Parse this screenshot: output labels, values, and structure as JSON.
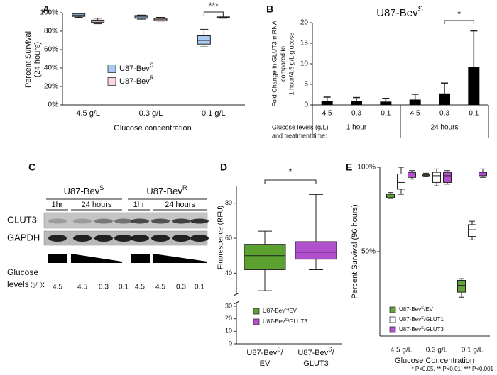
{
  "chart_data": [
    {
      "panel": "A",
      "type": "box",
      "ylabel": [
        "Percent Survival",
        "(24 hours)"
      ],
      "xlabel": "Glucose concentration",
      "categories": [
        "4.5 g/L",
        "0.3 g/L",
        "0.1 g/L"
      ],
      "series": [
        {
          "name": [
            "U87-Bev",
            "S"
          ],
          "color": "#a9cbef",
          "values": [
            {
              "min": 95,
              "q1": 96,
              "median": 97.5,
              "q3": 99,
              "max": 99.5
            },
            {
              "min": 93,
              "q1": 94,
              "median": 95.5,
              "q3": 97,
              "max": 97.5
            },
            {
              "min": 63,
              "q1": 66,
              "median": 70,
              "q3": 75,
              "max": 82
            }
          ]
        },
        {
          "name": [
            "U87-Bev",
            "R"
          ],
          "color": "#f8d7da",
          "values": [
            {
              "min": 88,
              "q1": 89.5,
              "median": 91,
              "q3": 92,
              "max": 94
            },
            {
              "min": 91,
              "q1": 91.5,
              "median": 93,
              "q3": 94,
              "max": 95
            },
            {
              "min": 94,
              "q1": 94.5,
              "median": 95,
              "q3": 95.5,
              "max": 96.5
            }
          ]
        }
      ],
      "ylim": [
        0,
        100
      ],
      "yticks": [
        {
          "value": 0,
          "label": "0%"
        },
        {
          "value": 20,
          "label": "20%"
        },
        {
          "value": 40,
          "label": "40%"
        },
        {
          "value": 60,
          "label": "60%"
        },
        {
          "value": 80,
          "label": "80%"
        },
        {
          "value": 100,
          "label": "100%"
        }
      ],
      "annotations": [
        "***"
      ]
    },
    {
      "panel": "B",
      "type": "bar",
      "title": [
        "U87-Bev",
        "S"
      ],
      "ylabel": [
        "Fold Change in GLUT3 mRNA",
        "compared to",
        "1 hour/4.5 g/L glucose"
      ],
      "categories": [
        "4.5",
        "0.3",
        "0.1",
        "4.5",
        "0.3",
        "0.1"
      ],
      "values": [
        1.0,
        0.9,
        0.8,
        1.3,
        2.8,
        9.3
      ],
      "errors": [
        0.9,
        0.9,
        0.8,
        1.3,
        2.5,
        8.7
      ],
      "color": "#000000",
      "ylim": [
        0,
        20
      ],
      "yticks": [
        0,
        5,
        10,
        15,
        20
      ],
      "group_labels": [
        "1 hour",
        "24 hours"
      ],
      "row_label": [
        "Glucose levels (g/L)",
        "and treatment time:"
      ],
      "annotations": [
        "*"
      ]
    },
    {
      "panel": "D",
      "type": "box",
      "ylabel": [
        "Fluorescence (RFU)"
      ],
      "categories": [
        [
          [
            "U87-Bev",
            "S",
            "/"
          ],
          [
            "EV"
          ]
        ],
        [
          [
            "U87-Bev",
            "S",
            "/"
          ],
          [
            "GLUT3"
          ]
        ]
      ],
      "series": [
        {
          "name": [
            "U87-Bev",
            "S",
            "/EV"
          ],
          "color": "#5ca12f",
          "values": [
            {
              "min": 30,
              "q1": 42,
              "median": 50,
              "q3": 56.5,
              "max": 64
            },
            null
          ]
        },
        {
          "name": [
            "U87-Bev",
            "S",
            "/GLUT3"
          ],
          "color": "#b050cc",
          "values": [
            null,
            {
              "min": 42,
              "q1": 48,
              "median": 52,
              "q3": 58,
              "max": 85
            }
          ]
        }
      ],
      "ylim": [
        28,
        90
      ],
      "yticks": [
        40,
        60,
        80
      ],
      "lower_ylim": [
        0,
        30
      ],
      "lower_yticks": [
        0,
        10,
        20,
        30
      ],
      "annotations": [
        "*"
      ]
    },
    {
      "panel": "E",
      "type": "box",
      "ylabel": [
        "Percent Survival (96 hours)"
      ],
      "xlabel": "Glucose Concentration",
      "categories": [
        "4.5 g/L",
        "0.3 g/L",
        "0.1 g/L"
      ],
      "series": [
        {
          "name": [
            "U87-Bev",
            "S",
            "/EV"
          ],
          "color": "#62a33a",
          "values": [
            {
              "min": 81.5,
              "q1": 82,
              "median": 83,
              "q3": 84,
              "max": 85
            },
            {
              "min": 94.5,
              "q1": 95,
              "median": 95.5,
              "q3": 96,
              "max": 96.5
            },
            {
              "min": 23,
              "q1": 26,
              "median": 30,
              "q3": 33,
              "max": 34
            }
          ]
        },
        {
          "name": [
            "U87-Bev",
            "S",
            "/GLUT1"
          ],
          "color": "#ffffff",
          "values": [
            {
              "min": 84,
              "q1": 87,
              "median": 91,
              "q3": 96,
              "max": 100
            },
            {
              "min": 89,
              "q1": 91,
              "median": 95,
              "q3": 97,
              "max": 99
            },
            {
              "min": 57,
              "q1": 59,
              "median": 63,
              "q3": 66,
              "max": 68
            }
          ]
        },
        {
          "name": [
            "U87-Bev",
            "S",
            "/GLUT3"
          ],
          "color": "#b44fd0",
          "values": [
            {
              "min": 93,
              "q1": 94,
              "median": 96,
              "q3": 97,
              "max": 98
            },
            {
              "min": 90,
              "q1": 91,
              "median": 95,
              "q3": 97,
              "max": 98
            },
            {
              "min": 94,
              "q1": 95,
              "median": 96,
              "q3": 97,
              "max": 99
            }
          ]
        }
      ],
      "ylim": [
        0,
        100
      ],
      "yticks": [
        {
          "value": 50,
          "label": "50%"
        },
        {
          "value": 100,
          "label": "100%"
        }
      ]
    }
  ],
  "blot": {
    "panel": "C",
    "groups": [
      [
        "U87-Bev",
        "S"
      ],
      [
        "U87-Bev",
        "R"
      ]
    ],
    "times": [
      "1hr",
      "24 hours",
      "1hr",
      "24 hours"
    ],
    "rows": [
      "GLUT3",
      "GAPDH"
    ],
    "glucose_label": [
      "Glucose",
      [
        "levels",
        "(g/L)",
        ":"
      ]
    ],
    "lanes": [
      "4.5",
      "4.5",
      "0.3",
      "0.1",
      "4.5",
      "4.5",
      "0.3",
      "0.1"
    ]
  },
  "footnote": "* P<0.05, ** P<0.01, *** P<0.001"
}
